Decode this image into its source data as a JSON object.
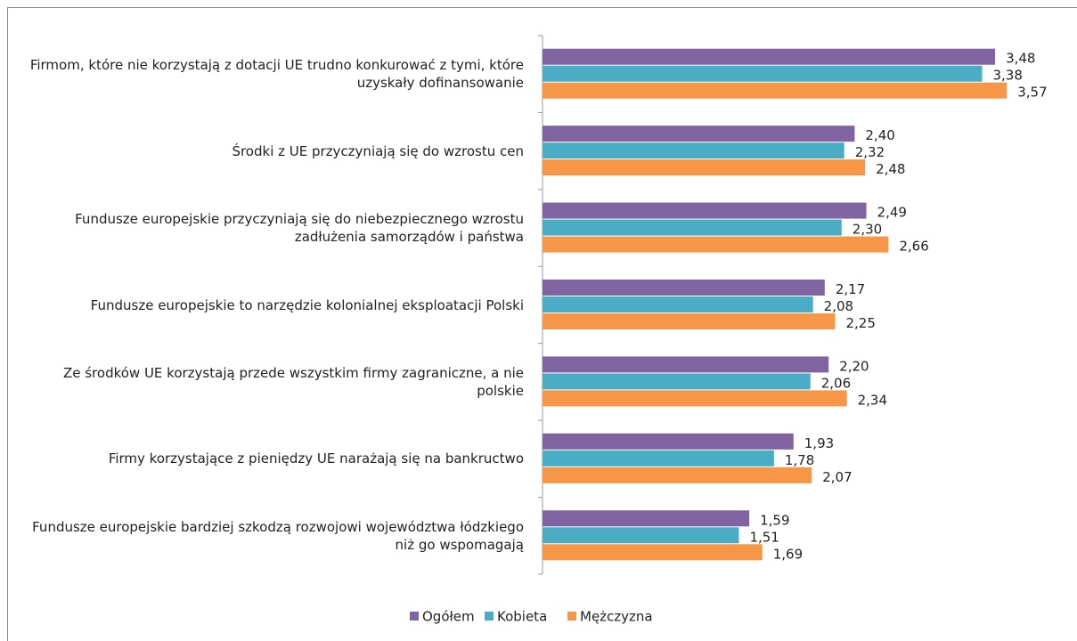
{
  "chart_data": {
    "type": "bar",
    "orientation": "horizontal",
    "categories": [
      "Firmom, które nie korzystają z dotacji UE trudno konkurować z tymi, które uzyskały dofinansowanie",
      "Środki z UE przyczyniają się do wzrostu cen",
      "Fundusze europejskie przyczyniają się do niebezpiecznego wzrostu zadłużenia samorządów i państwa",
      "Fundusze europejskie to narzędzie kolonialnej eksploatacji Polski",
      "Ze środków UE korzystają przede wszystkim firmy zagraniczne, a nie polskie",
      "Firmy korzystające z pieniędzy UE narażają się na bankructwo",
      "Fundusze europejskie bardziej szkodzą rozwojowi województwa łódzkiego niż go wspomagają"
    ],
    "series": [
      {
        "name": "Ogółem",
        "color": "#8064a2",
        "values": [
          3.48,
          2.4,
          2.49,
          2.17,
          2.2,
          1.93,
          1.59
        ],
        "value_labels": [
          "3,48",
          "2,40",
          "2,49",
          "2,17",
          "2,20",
          "1,93",
          "1,59"
        ]
      },
      {
        "name": "Kobieta",
        "color": "#4bacc6",
        "values": [
          3.38,
          2.32,
          2.3,
          2.08,
          2.06,
          1.78,
          1.51
        ],
        "value_labels": [
          "3,38",
          "2,32",
          "2,30",
          "2,08",
          "2,06",
          "1,78",
          "1,51"
        ]
      },
      {
        "name": "Mężczyzna",
        "color": "#f79646",
        "values": [
          3.57,
          2.48,
          2.66,
          2.25,
          2.34,
          2.07,
          1.69
        ],
        "value_labels": [
          "3,57",
          "2,48",
          "2,66",
          "2,25",
          "2,34",
          "2,07",
          "1,69"
        ]
      }
    ],
    "xlim": [
      0,
      4
    ],
    "legend": "bottom"
  }
}
